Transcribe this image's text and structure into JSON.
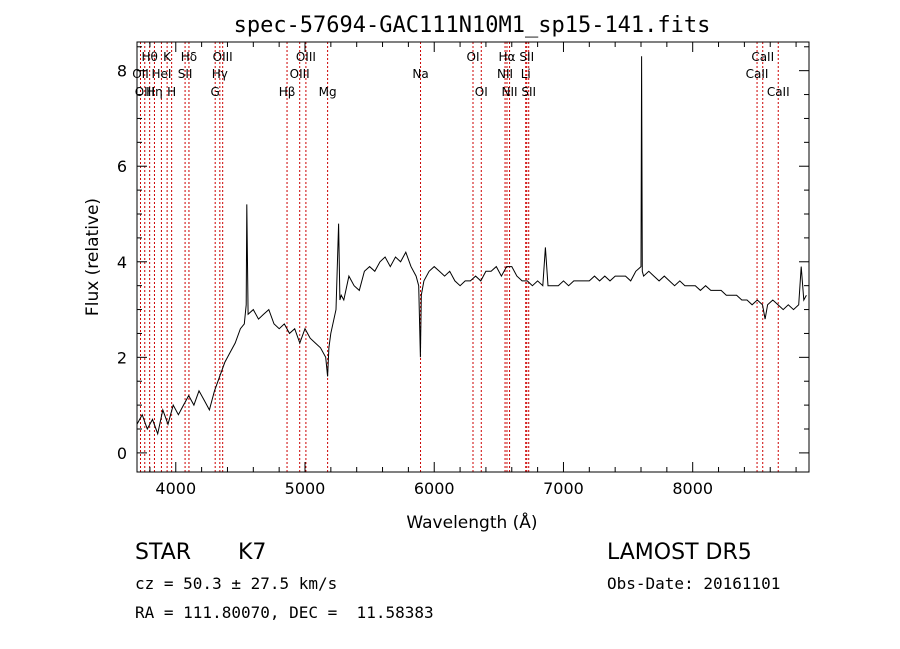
{
  "chart_data": {
    "type": "line",
    "title": "spec-57694-GAC111N10M1_sp15-141.fits",
    "xlabel": "Wavelength (Å)",
    "ylabel": "Flux (relative)",
    "xlim": [
      3700,
      8900
    ],
    "ylim": [
      -0.4,
      8.6
    ],
    "x_ticks": [
      4000,
      5000,
      6000,
      7000,
      8000
    ],
    "y_ticks": [
      0,
      2,
      4,
      6,
      8
    ],
    "grid": false,
    "legend": "none",
    "line_color": "#000000",
    "line_marker_color": "#cc0000",
    "series": [
      {
        "x": [
          3700,
          3740,
          3780,
          3820,
          3860,
          3900,
          3940,
          3980,
          4020,
          4060,
          4100,
          4140,
          4180,
          4220,
          4260,
          4300,
          4340,
          4380,
          4420,
          4460,
          4500,
          4530,
          4545,
          4550,
          4560,
          4600,
          4640,
          4680,
          4720,
          4760,
          4800,
          4840,
          4880,
          4920,
          4960,
          5000,
          5040,
          5080,
          5120,
          5160,
          5175,
          5185,
          5200,
          5240,
          5260,
          5270,
          5280,
          5300,
          5340,
          5380,
          5420,
          5460,
          5500,
          5540,
          5580,
          5620,
          5660,
          5700,
          5740,
          5780,
          5820,
          5860,
          5880,
          5893,
          5900,
          5920,
          5960,
          6000,
          6040,
          6080,
          6120,
          6160,
          6200,
          6240,
          6280,
          6320,
          6360,
          6400,
          6440,
          6480,
          6520,
          6560,
          6600,
          6640,
          6680,
          6720,
          6760,
          6800,
          6840,
          6860,
          6880,
          6920,
          6960,
          7000,
          7040,
          7080,
          7120,
          7160,
          7200,
          7240,
          7280,
          7320,
          7360,
          7400,
          7440,
          7480,
          7520,
          7560,
          7600,
          7605,
          7610,
          7620,
          7660,
          7700,
          7740,
          7780,
          7820,
          7860,
          7900,
          7940,
          7980,
          8020,
          8060,
          8100,
          8140,
          8180,
          8220,
          8260,
          8300,
          8340,
          8380,
          8420,
          8460,
          8500,
          8540,
          8560,
          8580,
          8620,
          8660,
          8700,
          8740,
          8780,
          8820,
          8840,
          8860,
          8880
        ],
        "y": [
          0.6,
          0.8,
          0.5,
          0.7,
          0.4,
          0.9,
          0.6,
          1.0,
          0.8,
          1.0,
          1.2,
          1.0,
          1.3,
          1.1,
          0.9,
          1.3,
          1.6,
          1.9,
          2.1,
          2.3,
          2.6,
          2.7,
          3.1,
          5.2,
          2.9,
          3.0,
          2.8,
          2.9,
          3.0,
          2.7,
          2.6,
          2.7,
          2.5,
          2.6,
          2.3,
          2.6,
          2.4,
          2.3,
          2.2,
          2.0,
          1.6,
          2.2,
          2.5,
          3.0,
          4.8,
          3.2,
          3.3,
          3.2,
          3.7,
          3.5,
          3.4,
          3.8,
          3.9,
          3.8,
          4.0,
          4.1,
          3.9,
          4.1,
          4.0,
          4.2,
          3.9,
          3.7,
          3.5,
          2.0,
          3.3,
          3.6,
          3.8,
          3.9,
          3.8,
          3.7,
          3.8,
          3.6,
          3.5,
          3.6,
          3.6,
          3.7,
          3.6,
          3.8,
          3.8,
          3.9,
          3.7,
          3.9,
          3.9,
          3.7,
          3.6,
          3.6,
          3.5,
          3.6,
          3.5,
          4.3,
          3.5,
          3.5,
          3.5,
          3.6,
          3.5,
          3.6,
          3.6,
          3.6,
          3.6,
          3.7,
          3.6,
          3.7,
          3.6,
          3.7,
          3.7,
          3.7,
          3.6,
          3.8,
          3.9,
          8.3,
          3.8,
          3.7,
          3.8,
          3.7,
          3.6,
          3.7,
          3.6,
          3.5,
          3.6,
          3.5,
          3.5,
          3.5,
          3.4,
          3.5,
          3.4,
          3.4,
          3.4,
          3.3,
          3.3,
          3.3,
          3.2,
          3.2,
          3.1,
          3.2,
          3.1,
          2.8,
          3.1,
          3.2,
          3.1,
          3.0,
          3.1,
          3.0,
          3.1,
          3.9,
          3.2,
          3.3
        ]
      }
    ],
    "spectral_lines": [
      {
        "label": "Hθ",
        "wavelength": 3798,
        "row": 1
      },
      {
        "label": "OII",
        "wavelength": 3727,
        "row": 2
      },
      {
        "label": "OIII",
        "wavelength": 3760,
        "row": 3
      },
      {
        "label": "Hη",
        "wavelength": 3835,
        "row": 3
      },
      {
        "label": "HeI",
        "wavelength": 3889,
        "row": 2
      },
      {
        "label": "K",
        "wavelength": 3933,
        "row": 1
      },
      {
        "label": "H",
        "wavelength": 3968,
        "row": 3
      },
      {
        "label": "SII",
        "wavelength": 4072,
        "row": 2
      },
      {
        "label": "Hδ",
        "wavelength": 4102,
        "row": 1
      },
      {
        "label": "G",
        "wavelength": 4305,
        "row": 3
      },
      {
        "label": "Hγ",
        "wavelength": 4341,
        "row": 2
      },
      {
        "label": "OIII",
        "wavelength": 4363,
        "row": 1
      },
      {
        "label": "Hβ",
        "wavelength": 4861,
        "row": 3
      },
      {
        "label": "OIII",
        "wavelength": 4959,
        "row": 2
      },
      {
        "label": "OIII",
        "wavelength": 5007,
        "row": 1
      },
      {
        "label": "Mg",
        "wavelength": 5175,
        "row": 3
      },
      {
        "label": "Na",
        "wavelength": 5894,
        "row": 2
      },
      {
        "label": "OI",
        "wavelength": 6300,
        "row": 1
      },
      {
        "label": "OI",
        "wavelength": 6364,
        "row": 3
      },
      {
        "label": "NII",
        "wavelength": 6548,
        "row": 2
      },
      {
        "label": "Hα",
        "wavelength": 6563,
        "row": 1
      },
      {
        "label": "NII",
        "wavelength": 6583,
        "row": 3
      },
      {
        "label": "Li",
        "wavelength": 6708,
        "row": 2
      },
      {
        "label": "SII",
        "wavelength": 6716,
        "row": 1
      },
      {
        "label": "SII",
        "wavelength": 6731,
        "row": 3
      },
      {
        "label": "CaII",
        "wavelength": 8498,
        "row": 2
      },
      {
        "label": "CaII",
        "wavelength": 8542,
        "row": 1
      },
      {
        "label": "CaII",
        "wavelength": 8662,
        "row": 3
      }
    ]
  },
  "info": {
    "object_class": "STAR",
    "subclass": "K7",
    "survey": "LAMOST DR5",
    "cz": "cz = 50.3 ± 27.5 km/s",
    "obs_date": "Obs-Date: 20161101",
    "coords": "RA = 111.80070, DEC =  11.58383"
  }
}
